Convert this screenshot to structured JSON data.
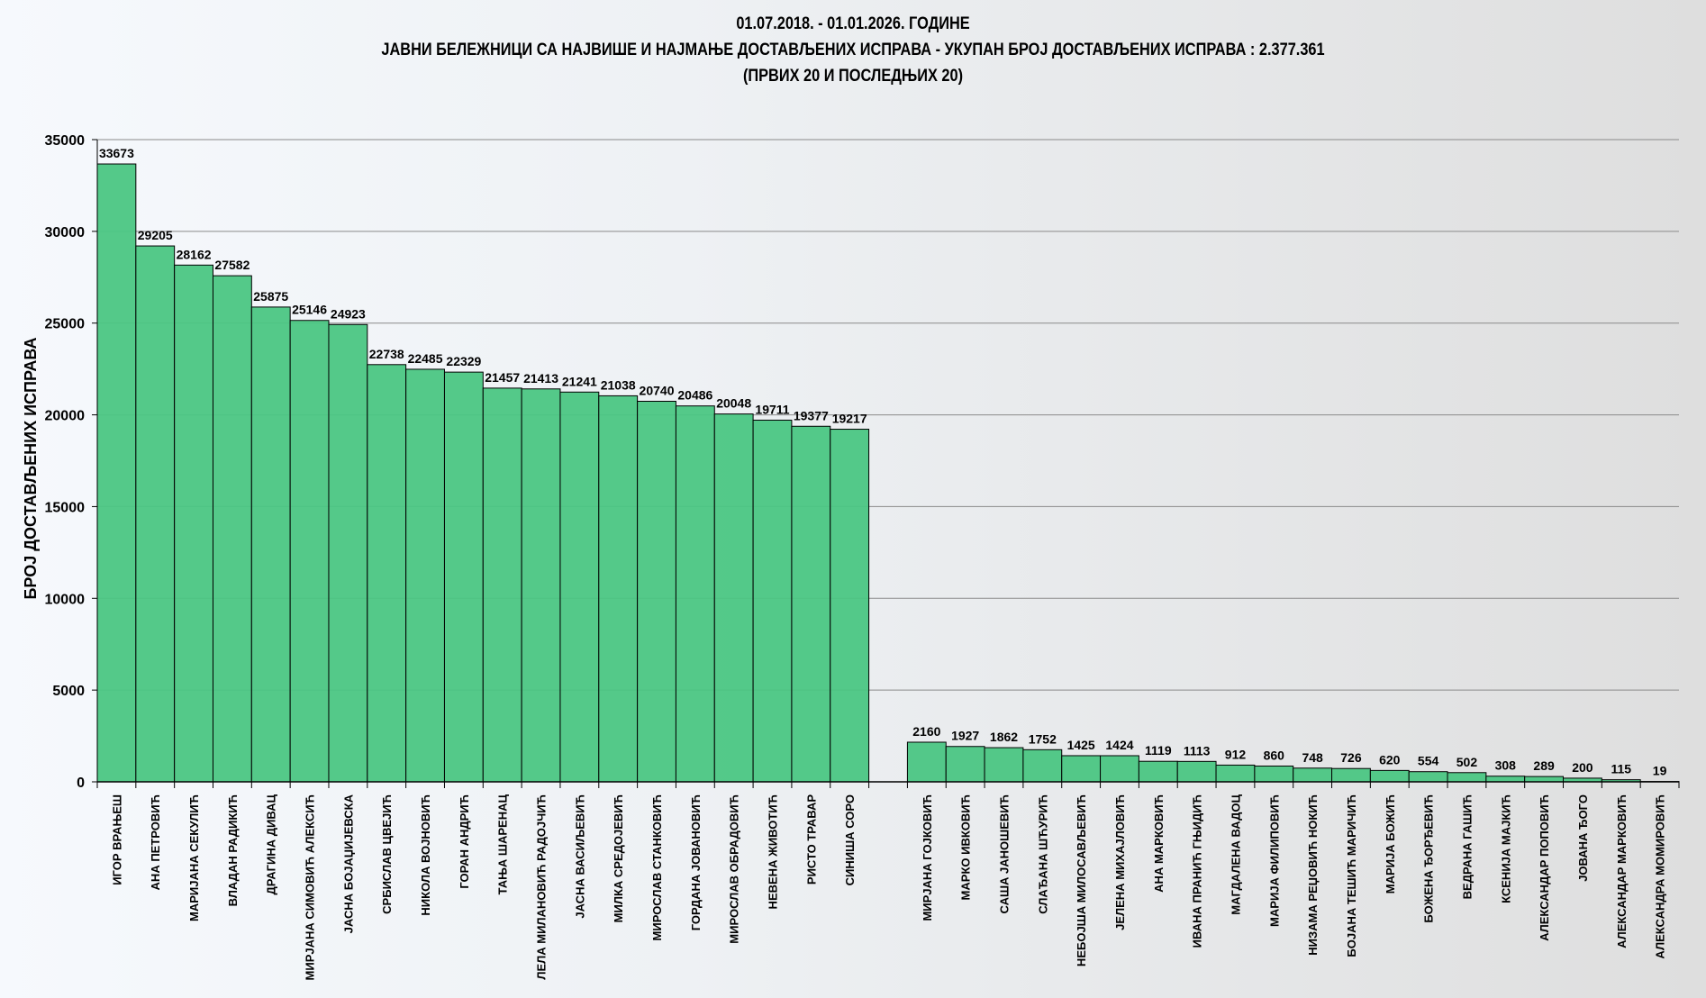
{
  "chart_data": {
    "type": "bar",
    "title_lines": [
      "01.07.2018. - 01.01.2026. ГОДИНЕ",
      "ЈАВНИ БЕЛЕЖНИЦИ СА НАЈВИШЕ И НАЈМАЊЕ ДОСТАВЉЕНИХ ИСПРАВА - УКУПАН БРОЈ ДОСТАВЉЕНИХ ИСПРАВА : 2.377.361",
      "(ПРВИХ 20 И ПОСЛЕДЊИХ 20)"
    ],
    "xlabel": "",
    "ylabel": "БРОЈ ДОСТАВЉЕНИХ ИСПРАВА",
    "ylim": [
      0,
      35000
    ],
    "yticks": [
      0,
      5000,
      10000,
      15000,
      20000,
      25000,
      30000,
      35000
    ],
    "grid": true,
    "bar_color": "#4bc683",
    "groups": [
      {
        "categories": [
          "ИГОР ВРАЊЕШ",
          "АНА ПЕТРОВИЋ",
          "МАРИЈАНА СЕКУЛИЋ",
          "ВЛАДАН РАДИКИЋ",
          "ДРАГИНА ДИВАЦ",
          "МИРЈАНА СИМОВИЋ АЛЕКСИЋ",
          "ЈАСНА БОЈАЏИЈЕВСКА",
          "СРБИСЛАВ ЦВЕЈИЋ",
          "НИКОЛА ВОЈНОВИЋ",
          "ГОРАН АНДРИЋ",
          "ТАЊА ШАРЕНАЦ",
          "ЛЕЛА МИЛАНОВИЋ РАДОЈЧИЋ",
          "ЈАСНА ВАСИЉЕВИЋ",
          "МИЛКА СРЕДОЈЕВИЋ",
          "МИРОСЛАВ СТАНКОВИЋ",
          "ГОРДАНА ЈОВАНОВИЋ",
          "МИРОСЛАВ ОБРАДОВИЋ",
          "НЕВЕНА ЖИВОТИЋ",
          "РИСТО ТРАВАР",
          "СИНИША СОРО"
        ],
        "values": [
          33673,
          29205,
          28162,
          27582,
          25875,
          25146,
          24923,
          22738,
          22485,
          22329,
          21457,
          21413,
          21241,
          21038,
          20740,
          20486,
          20048,
          19711,
          19377,
          19217
        ]
      },
      {
        "categories": [
          "МИРЈАНА ГОЈКОВИЋ",
          "МАРКО ИВКОВИЋ",
          "САША ЈАНОШЕВИЋ",
          "СЛАЂАНА ШЋУРИЋ",
          "НЕБОЈША МИЛОСАВЉЕВИЋ",
          "ЈЕЛЕНА МИХАЈЛОВИЋ",
          "АНА МАРКОВИЋ",
          "ИВАНА ПРАНИЋ ГЊИДИЋ",
          "МАГДАЛЕНА ВАДОЦ",
          "МАРИЈА ФИЛИПОВИЋ",
          "НИЗАМА РЕЏОВИЋ НОКИЋ",
          "БОЈАНА ТЕШИЋ МАРИЧИЋ",
          "МАРИЈА БОЖИЋ",
          "БОЖЕНА ЂОРЂЕВИЋ",
          "ВЕДРАНА ГАШИЋ",
          "КСЕНИЈА МАЈКИЋ",
          "АЛЕКСАНДАР ПОПОВИЋ",
          "ЈОВАНА ЂОГО",
          "АЛЕКСАНДАР МАРКОВИЋ",
          "АЛЕКСАНДРА МОМИРОВИЋ"
        ],
        "values": [
          2160,
          1927,
          1862,
          1752,
          1425,
          1424,
          1119,
          1113,
          912,
          860,
          748,
          726,
          620,
          554,
          502,
          308,
          289,
          200,
          115,
          19
        ]
      }
    ]
  }
}
